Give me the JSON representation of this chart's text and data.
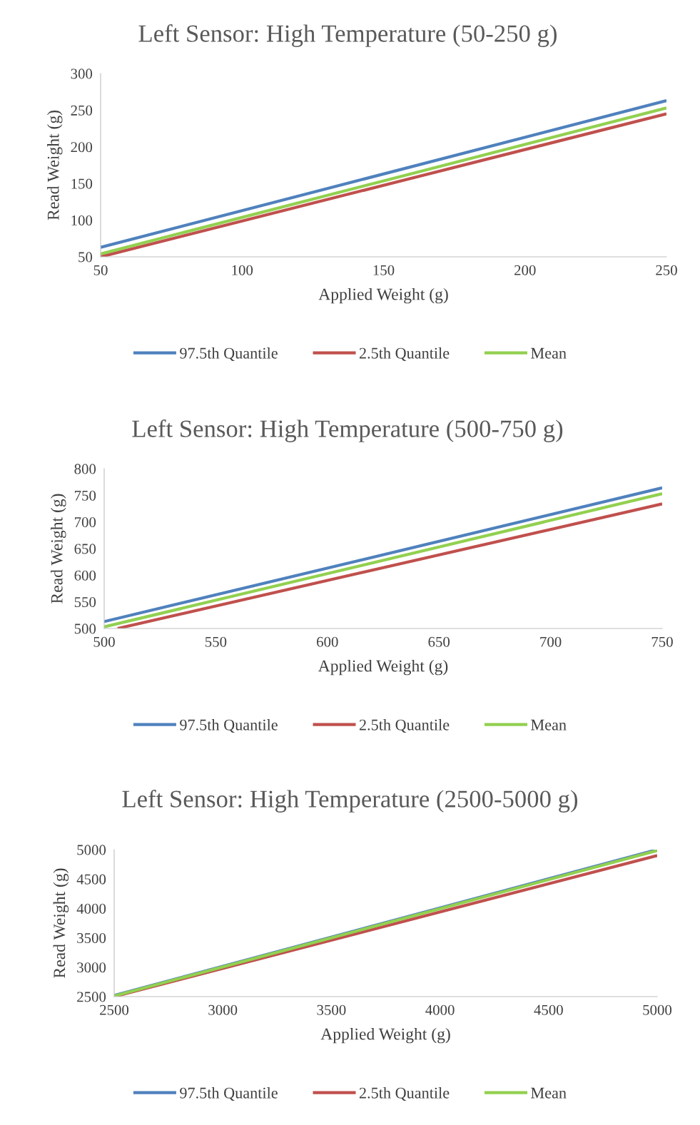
{
  "chart_data": [
    {
      "type": "line",
      "title": "Left Sensor: High Temperature (50-250 g)",
      "xlabel": "Applied Weight (g)",
      "ylabel": "Read Weight (g)",
      "x": [
        50,
        250
      ],
      "xlim": [
        50,
        250
      ],
      "xticks": [
        50,
        100,
        150,
        200,
        250
      ],
      "ylim": [
        50,
        300
      ],
      "yticks": [
        50,
        100,
        150,
        200,
        250,
        300
      ],
      "grid": false,
      "legend": "bottom",
      "marker": "none",
      "line_style": "solid",
      "series": [
        {
          "name": "97.5th Quantile",
          "color": "#4f81bd",
          "values": [
            63,
            263
          ]
        },
        {
          "name": "2.5th Quantile",
          "color": "#c0504d",
          "values": [
            50,
            245
          ]
        },
        {
          "name": "Mean",
          "color": "#92d050",
          "values": [
            54,
            253
          ]
        }
      ]
    },
    {
      "type": "line",
      "title": "Left Sensor: High Temperature (500-750 g)",
      "xlabel": "Applied Weight (g)",
      "ylabel": "Read Weight (g)",
      "x": [
        500,
        750
      ],
      "xlim": [
        500,
        750
      ],
      "xticks": [
        500,
        550,
        600,
        650,
        700,
        750
      ],
      "ylim": [
        500,
        800
      ],
      "yticks": [
        500,
        550,
        600,
        650,
        700,
        750,
        800
      ],
      "grid": false,
      "legend": "bottom",
      "marker": "none",
      "line_style": "solid",
      "series": [
        {
          "name": "97.5th Quantile",
          "color": "#4f81bd",
          "values": [
            513,
            764
          ]
        },
        {
          "name": "2.5th Quantile",
          "color": "#c0504d",
          "x": [
            506,
            750
          ],
          "values": [
            500,
            734
          ]
        },
        {
          "name": "Mean",
          "color": "#92d050",
          "values": [
            503,
            753
          ]
        }
      ]
    },
    {
      "type": "line",
      "title": "Left Sensor: High Temperature (2500-5000 g)",
      "xlabel": "Applied Weight (g)",
      "ylabel": "Read Weight (g)",
      "x": [
        2500,
        5000
      ],
      "xlim": [
        2500,
        5000
      ],
      "xticks": [
        2500,
        3000,
        3500,
        4000,
        4500,
        5000
      ],
      "ylim": [
        2500,
        5000
      ],
      "yticks": [
        2500,
        3000,
        3500,
        4000,
        4500,
        5000
      ],
      "grid": false,
      "legend": "bottom",
      "marker": "none",
      "line_style": "solid",
      "series": [
        {
          "name": "97.5th Quantile",
          "color": "#4f81bd",
          "values": [
            2520,
            5000
          ]
        },
        {
          "name": "2.5th Quantile",
          "color": "#c0504d",
          "values": [
            2500,
            4900
          ]
        },
        {
          "name": "Mean",
          "color": "#92d050",
          "values": [
            2510,
            4985
          ]
        }
      ]
    }
  ]
}
